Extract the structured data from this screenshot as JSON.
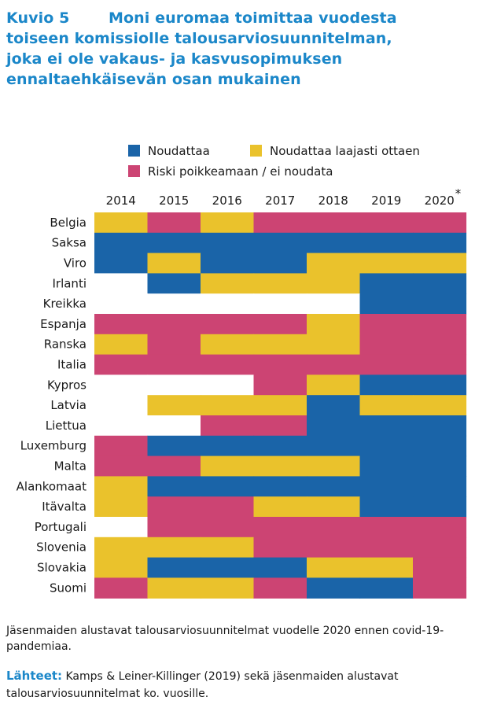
{
  "figure_label": "Kuvio 5",
  "title_lines": [
    "Moni euromaa toimittaa vuodesta",
    "toiseen komissiolle talousarviosuunnitelman,",
    "joka ei ole vakaus- ja kasvusopimuksen",
    "ennaltaehkäisevän osan mukainen"
  ],
  "note": "Jäsenmaiden alustavat talousarviosuunnitelmat vuodelle 2020 ennen covid-19-pandemiaa.",
  "sources_label": "Lähteet:",
  "sources_text": " Kamps & Leiner-Killinger (2019) sekä jäsenmaiden alustavat talousarviosuunnitelmat ko. vuosille.",
  "colors": {
    "N": "#1a64a8",
    "L": "#eac22c",
    "R": "#cc4473",
    "empty": "#ffffff"
  },
  "chart_data": {
    "type": "heatmap",
    "legend": [
      {
        "code": "N",
        "label": "Noudattaa"
      },
      {
        "code": "L",
        "label": "Noudattaa laajasti ottaen"
      },
      {
        "code": "R",
        "label": "Riski poikkeamaan / ei noudata"
      }
    ],
    "years": [
      "2014",
      "2015",
      "2016",
      "2017",
      "2018",
      "2019",
      "2020"
    ],
    "year_footnote": {
      "year": "2020",
      "mark": "*"
    },
    "countries": [
      "Belgia",
      "Saksa",
      "Viro",
      "Irlanti",
      "Kreikka",
      "Espanja",
      "Ranska",
      "Italia",
      "Kypros",
      "Latvia",
      "Liettua",
      "Luxemburg",
      "Malta",
      "Alankomaat",
      "Itävalta",
      "Portugali",
      "Slovenia",
      "Slovakia",
      "Suomi"
    ],
    "values": [
      [
        "L",
        "R",
        "L",
        "R",
        "R",
        "R",
        "R"
      ],
      [
        "N",
        "N",
        "N",
        "N",
        "N",
        "N",
        "N"
      ],
      [
        "N",
        "L",
        "N",
        "N",
        "L",
        "L",
        "L"
      ],
      [
        "",
        "N",
        "L",
        "L",
        "L",
        "N",
        "N"
      ],
      [
        "",
        "",
        "",
        "",
        "",
        "N",
        "N"
      ],
      [
        "R",
        "R",
        "R",
        "R",
        "L",
        "R",
        "R"
      ],
      [
        "L",
        "R",
        "L",
        "L",
        "L",
        "R",
        "R"
      ],
      [
        "R",
        "R",
        "R",
        "R",
        "R",
        "R",
        "R"
      ],
      [
        "",
        "",
        "",
        "R",
        "L",
        "N",
        "N"
      ],
      [
        "",
        "L",
        "L",
        "L",
        "N",
        "L",
        "L"
      ],
      [
        "",
        "",
        "R",
        "R",
        "N",
        "N",
        "N"
      ],
      [
        "R",
        "N",
        "N",
        "N",
        "N",
        "N",
        "N"
      ],
      [
        "R",
        "R",
        "L",
        "L",
        "L",
        "N",
        "N"
      ],
      [
        "L",
        "N",
        "N",
        "N",
        "N",
        "N",
        "N"
      ],
      [
        "L",
        "R",
        "R",
        "L",
        "L",
        "N",
        "N"
      ],
      [
        "",
        "R",
        "R",
        "R",
        "R",
        "R",
        "R"
      ],
      [
        "L",
        "L",
        "L",
        "R",
        "R",
        "R",
        "R"
      ],
      [
        "L",
        "N",
        "N",
        "N",
        "L",
        "L",
        "R"
      ],
      [
        "R",
        "L",
        "L",
        "R",
        "N",
        "N",
        "R"
      ]
    ]
  }
}
